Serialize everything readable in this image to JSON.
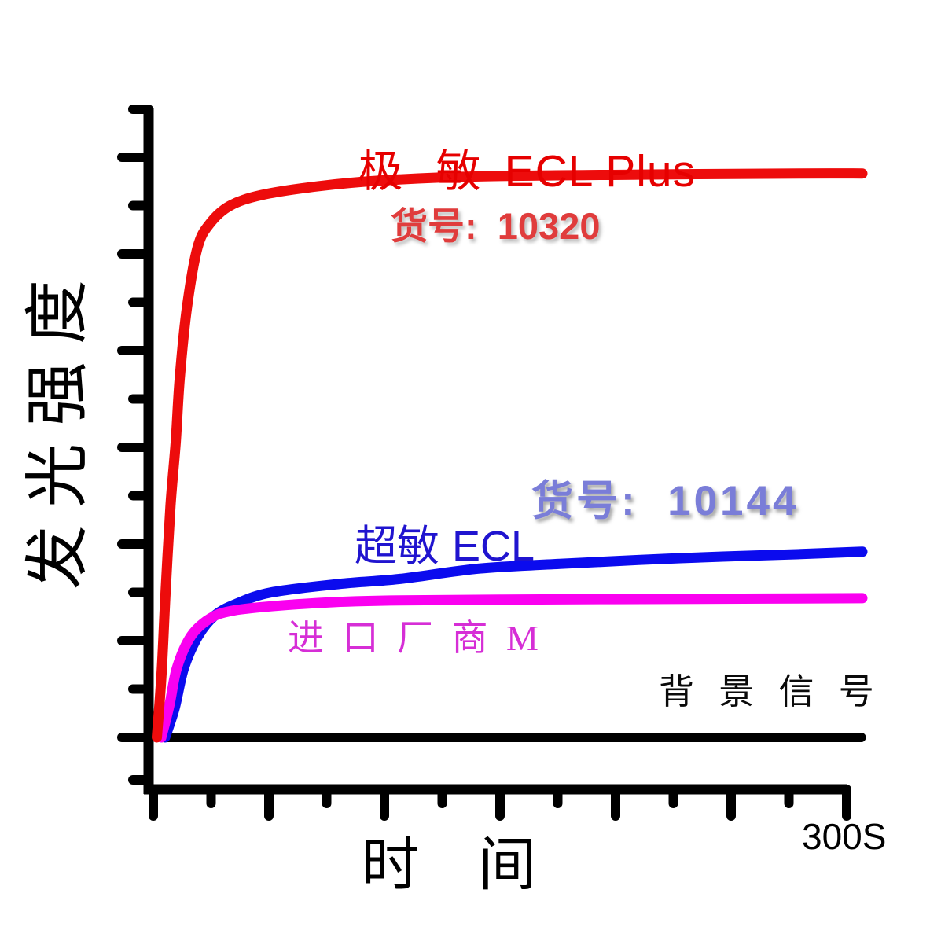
{
  "labels": {
    "title_cjk": "极 敏",
    "title_latin": "ECL Plus",
    "sku_red": "货号:  10320",
    "series_blue_cjk": "超敏",
    "series_blue_latin": "ECL",
    "sku_blue": "货号:  10144",
    "series_magenta": "进 口 厂 商 M",
    "background_signal": "背 景 信 号",
    "x_max_tick": "300S",
    "xlabel": "时 间",
    "ylabel": "发光强度"
  },
  "colors": {
    "title_red": "#e60000",
    "sku_red": "#e03c3c",
    "curve_red": "#ed0c0c",
    "series_blue": "#2014cf",
    "sku_blue": "#7a7dd8",
    "curve_blue": "#0b0bee",
    "series_magenta": "#d62ed6",
    "curve_magenta": "#fa00f0",
    "background_black": "#000000",
    "axis_black": "#000000"
  },
  "chart_data": {
    "type": "line",
    "title": "极 敏 ECL Plus",
    "xlabel": "时间",
    "ylabel": "发光强度",
    "x_unit": "S",
    "xlim": [
      0,
      300
    ],
    "ylim": [
      0,
      105
    ],
    "grid": false,
    "x_tick_labels_visible": [
      "300S"
    ],
    "y_tick_labels_visible": [],
    "legend_position": "annotations-on-plot",
    "series": [
      {
        "key": "background_signal",
        "name": "背景信号",
        "color": "#000000",
        "points": [
          [
            5,
            0
          ],
          [
            299.5,
            0
          ]
        ]
      },
      {
        "key": "ultra_ecl",
        "name": "超敏 ECL",
        "catalog_no": "10144",
        "color": "#0b0bee",
        "points": [
          [
            5,
            0
          ],
          [
            9,
            5
          ],
          [
            13,
            12
          ],
          [
            19,
            17.5
          ],
          [
            26,
            21
          ],
          [
            35,
            23
          ],
          [
            50,
            25
          ],
          [
            80,
            26.5
          ],
          [
            104,
            27.3
          ],
          [
            138,
            29.1
          ],
          [
            172,
            29.9
          ],
          [
            223,
            30.9
          ],
          [
            274,
            31.6
          ],
          [
            300,
            32
          ]
        ]
      },
      {
        "key": "importer_m",
        "name": "进口厂商M",
        "color": "#fa00f0",
        "points": [
          [
            3.4,
            0
          ],
          [
            6.8,
            5.5
          ],
          [
            10,
            12
          ],
          [
            16,
            17.5
          ],
          [
            24,
            20.5
          ],
          [
            33,
            21.8
          ],
          [
            50,
            22.6
          ],
          [
            76,
            23.3
          ],
          [
            104,
            23.6
          ],
          [
            172,
            23.8
          ],
          [
            240,
            23.9
          ],
          [
            300,
            24
          ]
        ]
      },
      {
        "key": "ecl_plus",
        "name": "极敏 ECL Plus",
        "catalog_no": "10320",
        "color": "#ed0c0c",
        "points": [
          [
            1.5,
            0
          ],
          [
            3.5,
            11
          ],
          [
            5.2,
            25
          ],
          [
            7.3,
            40
          ],
          [
            9.5,
            51
          ],
          [
            11.2,
            62
          ],
          [
            14.3,
            74.3
          ],
          [
            18.7,
            84.4
          ],
          [
            23.8,
            88.5
          ],
          [
            32.3,
            91.6
          ],
          [
            45.9,
            93.5
          ],
          [
            69.7,
            95
          ],
          [
            96.9,
            96
          ],
          [
            137.8,
            96.7
          ],
          [
            205.8,
            97
          ],
          [
            273.8,
            97.2
          ],
          [
            300,
            97.2
          ]
        ]
      }
    ],
    "annotations": [
      {
        "text": "极 敏 ECL Plus",
        "color": "#e60000"
      },
      {
        "text": "货号:  10320",
        "color": "#e03c3c"
      },
      {
        "text": "超敏 ECL",
        "color": "#2014cf"
      },
      {
        "text": "货号:  10144",
        "color": "#7a7dd8"
      },
      {
        "text": "进 口 厂 商 M",
        "color": "#d62ed6"
      },
      {
        "text": "背 景 信 号",
        "color": "#000000"
      }
    ]
  }
}
